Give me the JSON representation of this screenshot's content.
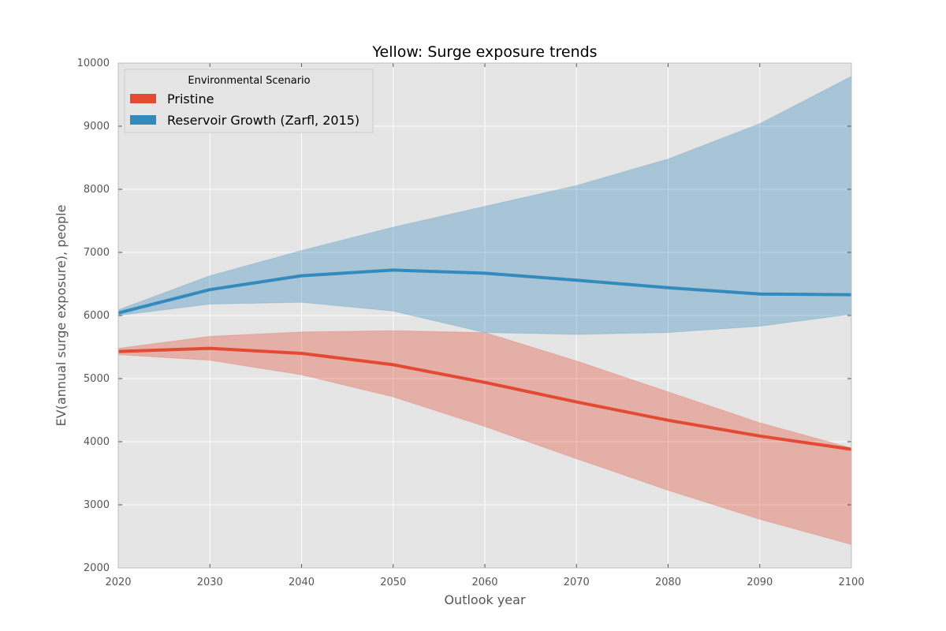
{
  "chart_data": {
    "type": "line",
    "title": "Yellow: Surge exposure trends",
    "xlabel": "Outlook year",
    "ylabel": "EV(annual surge exposure), people",
    "xlim": [
      2020,
      2100
    ],
    "ylim": [
      2000,
      10000
    ],
    "xticks": [
      2020,
      2030,
      2040,
      2050,
      2060,
      2070,
      2080,
      2090,
      2100
    ],
    "yticks": [
      2000,
      3000,
      4000,
      5000,
      6000,
      7000,
      8000,
      9000,
      10000
    ],
    "grid": true,
    "legend": {
      "title": "Environmental Scenario",
      "position": "top-left"
    },
    "x": [
      2020,
      2030,
      2040,
      2050,
      2060,
      2070,
      2080,
      2090,
      2100
    ],
    "series": [
      {
        "name": "Pristine",
        "color": "#e24a33",
        "values": [
          5430,
          5480,
          5400,
          5220,
          4940,
          4630,
          4340,
          4090,
          3880
        ],
        "lower": [
          5380,
          5290,
          5060,
          4710,
          4240,
          3730,
          3230,
          2770,
          2370
        ],
        "upper": [
          5480,
          5670,
          5740,
          5760,
          5730,
          5280,
          4790,
          4300,
          3900
        ]
      },
      {
        "name": "Reservoir Growth (Zarfl, 2015)",
        "color": "#348abd",
        "values": [
          6040,
          6410,
          6630,
          6720,
          6670,
          6560,
          6440,
          6340,
          6330
        ],
        "lower": [
          6000,
          6180,
          6210,
          6070,
          5730,
          5700,
          5730,
          5830,
          6020
        ],
        "upper": [
          6090,
          6630,
          7030,
          7400,
          7730,
          8060,
          8480,
          9040,
          9790
        ]
      }
    ]
  }
}
